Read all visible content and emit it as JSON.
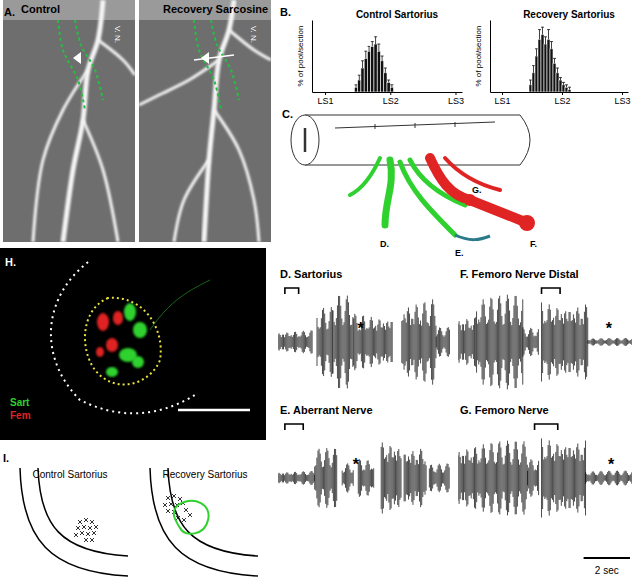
{
  "panels": {
    "A": {
      "label": "A.",
      "images": [
        {
          "title": "Control",
          "nerve_label": "V. N."
        },
        {
          "title": "Recovery Sarcosine",
          "nerve_label": "V. N."
        }
      ]
    },
    "B": {
      "label": "B."
    },
    "C": {
      "label": "C.",
      "branch_labels": [
        "D.",
        "E.",
        "F.",
        "G."
      ]
    },
    "H": {
      "label": "H.",
      "legend": [
        {
          "name": "Sart",
          "color": "#2fd12f"
        },
        {
          "name": "Fem",
          "color": "#e02424"
        }
      ]
    },
    "I": {
      "label": "I.",
      "titles": [
        "Control Sartorius",
        "Recovery Sartorius"
      ]
    }
  },
  "scale_bar": {
    "value": 2,
    "label": "2 sec"
  },
  "chart_data": [
    {
      "type": "histogram",
      "title": "Control Sartorius",
      "y_label": "% of pool/section",
      "color": "#111111",
      "bins": [
        1.45,
        1.5,
        1.55,
        1.6,
        1.65,
        1.7,
        1.75,
        1.8,
        1.85,
        1.9,
        1.95,
        2.0,
        2.05
      ],
      "values": [
        2,
        5,
        10,
        14,
        17,
        19,
        20,
        17,
        13,
        8,
        4,
        2
      ],
      "errors": [
        1,
        2,
        3,
        3,
        2,
        2,
        3,
        3,
        2,
        2,
        1,
        1
      ],
      "xlim": [
        0.8,
        3.1
      ],
      "xticks": [
        {
          "value": 1,
          "label": "LS1"
        },
        {
          "value": 2,
          "label": "LS2"
        },
        {
          "value": 3,
          "label": "LS3"
        }
      ],
      "ylim": [
        0,
        30
      ],
      "tick_labels": "x"
    },
    {
      "type": "histogram",
      "title": "Recovery Sartorius",
      "y_label": "% of pool/section",
      "color": "#111111",
      "bins": [
        1.45,
        1.5,
        1.55,
        1.6,
        1.65,
        1.7,
        1.75,
        1.8,
        1.85,
        1.9,
        1.95,
        2.0,
        2.05,
        2.1,
        2.15
      ],
      "values": [
        3,
        8,
        15,
        22,
        24,
        20,
        22,
        18,
        12,
        8,
        5,
        3,
        2,
        1
      ],
      "errors": [
        2,
        3,
        3,
        4,
        3,
        3,
        4,
        3,
        2,
        2,
        1,
        1,
        1,
        1
      ],
      "xlim": [
        0.8,
        3.1
      ],
      "xticks": [
        {
          "value": 1,
          "label": "LS1"
        },
        {
          "value": 2,
          "label": "LS2"
        },
        {
          "value": 3,
          "label": "LS3"
        }
      ],
      "ylim": [
        0,
        30
      ],
      "tick_labels": "x"
    },
    {
      "type": "trace",
      "title": "D. Sartorius",
      "color": "#000000",
      "xlim": [
        0,
        7.5
      ],
      "ylim": [
        -1,
        1
      ],
      "tick_labels": false,
      "bursts": [
        [
          0,
          1.5,
          0.25
        ],
        [
          1.7,
          2.4,
          0.7
        ],
        [
          2.4,
          3.3,
          0.95
        ],
        [
          3.3,
          5.0,
          0.6
        ],
        [
          5.4,
          6.9,
          0.9
        ],
        [
          6.9,
          7.5,
          0.3
        ]
      ],
      "bracket": [
        0.3,
        0.9
      ],
      "asterisk": {
        "x": 3.6,
        "label": "*"
      }
    },
    {
      "type": "trace",
      "title": "F. Femoro Nerve Distal",
      "color": "#000000",
      "xlim": [
        0,
        7.5
      ],
      "ylim": [
        -1,
        1
      ],
      "tick_labels": false,
      "bursts": [
        [
          0,
          0.8,
          0.6
        ],
        [
          0.8,
          2.8,
          0.95
        ],
        [
          2.8,
          3.5,
          0.3
        ],
        [
          3.6,
          5.6,
          0.9
        ],
        [
          5.6,
          7.5,
          0.08
        ]
      ],
      "bracket": [
        3.6,
        4.4
      ],
      "asterisk": {
        "x": 6.5,
        "label": "*"
      }
    },
    {
      "type": "trace",
      "title": "E. Aberrant Nerve",
      "color": "#000000",
      "xlim": [
        0,
        7.5
      ],
      "ylim": [
        -1,
        1
      ],
      "tick_labels": false,
      "bursts": [
        [
          0,
          1.6,
          0.15
        ],
        [
          1.6,
          2.6,
          0.6
        ],
        [
          2.8,
          3.3,
          0.3
        ],
        [
          3.5,
          4.2,
          0.4
        ],
        [
          4.5,
          5.4,
          0.85
        ],
        [
          5.5,
          6.5,
          0.7
        ],
        [
          6.6,
          7.5,
          0.3
        ]
      ],
      "bracket": [
        0.3,
        1.1
      ],
      "asterisk": {
        "x": 3.4,
        "label": "*"
      }
    },
    {
      "type": "trace",
      "title": "G. Femoro Nerve",
      "color": "#000000",
      "xlim": [
        0,
        7.5
      ],
      "ylim": [
        -1,
        1
      ],
      "tick_labels": false,
      "bursts": [
        [
          0,
          3.0,
          0.75
        ],
        [
          3.0,
          3.5,
          0.4
        ],
        [
          3.6,
          5.5,
          0.9
        ],
        [
          5.5,
          7.5,
          0.15
        ]
      ],
      "bracket": [
        3.3,
        4.3
      ],
      "asterisk": {
        "x": 6.6,
        "label": "*"
      }
    }
  ]
}
